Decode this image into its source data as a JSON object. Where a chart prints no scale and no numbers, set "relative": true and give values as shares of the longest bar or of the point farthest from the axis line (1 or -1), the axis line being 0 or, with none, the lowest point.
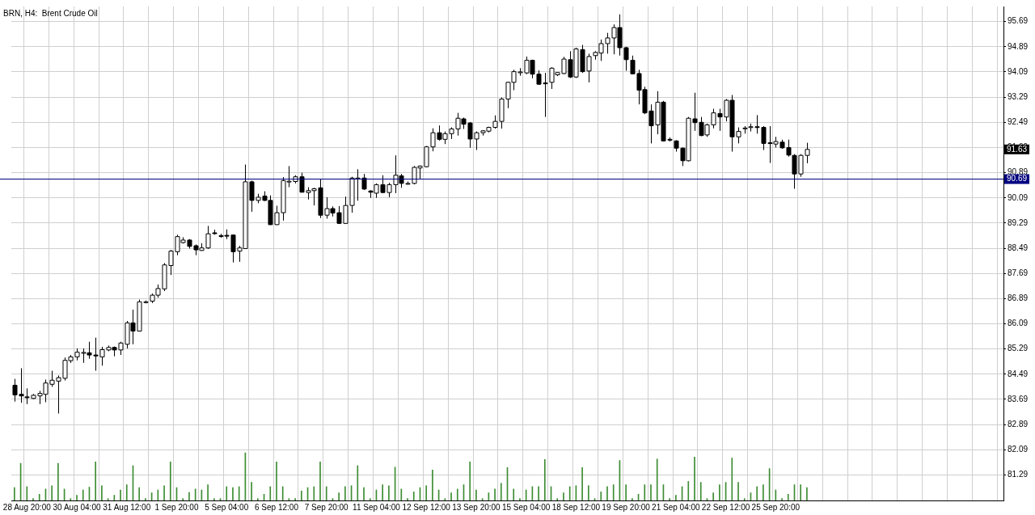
{
  "chart_data": [
    {
      "type": "candlestick",
      "title": "BRN, H4:  Brent Crude Oil",
      "categories": [
        null,
        null,
        "28 Aug 20:00",
        null,
        null,
        null,
        null,
        null,
        null,
        null,
        "30 Aug 04:00",
        null,
        null,
        null,
        null,
        null,
        null,
        null,
        "31 Aug 12:00",
        null,
        null,
        null,
        null,
        null,
        null,
        null,
        "1 Sep 20:00",
        null,
        null,
        null,
        null,
        null,
        null,
        null,
        "5 Sep 04:00",
        null,
        null,
        null,
        null,
        null,
        null,
        null,
        "6 Sep 12:00",
        null,
        null,
        null,
        null,
        null,
        null,
        null,
        "7 Sep 20:00",
        null,
        null,
        null,
        null,
        null,
        null,
        null,
        "11 Sep 04:00",
        null,
        null,
        null,
        null,
        null,
        null,
        null,
        "12 Sep 12:00",
        null,
        null,
        null,
        null,
        null,
        null,
        null,
        "13 Sep 20:00",
        null,
        null,
        null,
        null,
        null,
        null,
        null,
        "15 Sep 04:00",
        null,
        null,
        null,
        null,
        null,
        null,
        null,
        "18 Sep 12:00",
        null,
        null,
        null,
        null,
        null,
        null,
        null,
        "19 Sep 20:00",
        null,
        null,
        null,
        null,
        null,
        null,
        null,
        "21 Sep 04:00",
        null,
        null,
        null,
        null,
        null,
        null,
        null,
        "22 Sep 12:00",
        null,
        null,
        null,
        null,
        null,
        null,
        null,
        "25 Sep 20:00",
        null,
        null,
        null,
        null,
        null,
        null,
        null,
        null,
        null,
        null,
        null,
        null,
        null,
        null,
        null,
        null,
        null,
        null,
        null,
        null,
        null,
        null,
        null,
        null,
        null,
        null,
        null,
        null,
        null,
        null,
        null,
        null,
        null,
        null,
        null,
        null
      ],
      "ohlc": [
        [
          84.14,
          84.34,
          83.62,
          83.83
        ],
        [
          83.85,
          84.68,
          83.58,
          83.8
        ],
        [
          83.77,
          84.04,
          83.54,
          83.76
        ],
        [
          83.72,
          83.86,
          83.7,
          83.82
        ],
        [
          83.8,
          83.96,
          83.54,
          83.88
        ],
        [
          83.85,
          84.32,
          83.6,
          84.21
        ],
        [
          84.17,
          84.6,
          84.09,
          84.3
        ],
        [
          84.27,
          84.45,
          83.24,
          84.38
        ],
        [
          84.36,
          85.02,
          84.29,
          84.93
        ],
        [
          84.92,
          85.1,
          84.85,
          85.04
        ],
        [
          85.04,
          85.31,
          84.93,
          85.19
        ],
        [
          85.17,
          85.31,
          84.85,
          85.18
        ],
        [
          85.17,
          85.52,
          84.98,
          85.1
        ],
        [
          85.1,
          85.65,
          84.6,
          85.07
        ],
        [
          85.04,
          85.36,
          84.76,
          85.27
        ],
        [
          85.26,
          85.4,
          85.22,
          85.34
        ],
        [
          85.34,
          85.37,
          85.06,
          85.26
        ],
        [
          85.26,
          85.52,
          85.1,
          85.48
        ],
        [
          85.44,
          86.18,
          85.31,
          86.12
        ],
        [
          86.12,
          86.54,
          85.44,
          85.86
        ],
        [
          85.86,
          86.86,
          85.86,
          86.79
        ],
        [
          86.78,
          86.83,
          86.74,
          86.79
        ],
        [
          86.81,
          87.05,
          86.75,
          87.0
        ],
        [
          87.0,
          87.34,
          86.92,
          87.21
        ],
        [
          87.2,
          88.02,
          87.13,
          87.96
        ],
        [
          87.94,
          88.44,
          87.64,
          88.4
        ],
        [
          88.38,
          88.92,
          88.27,
          88.86
        ],
        [
          88.67,
          88.84,
          88.64,
          88.75
        ],
        [
          88.75,
          88.78,
          88.48,
          88.55
        ],
        [
          88.57,
          88.61,
          88.27,
          88.44
        ],
        [
          88.42,
          88.65,
          88.41,
          88.5
        ],
        [
          88.5,
          89.2,
          88.47,
          88.95
        ],
        [
          88.98,
          89.08,
          88.92,
          88.97
        ],
        [
          88.89,
          88.95,
          88.82,
          88.89
        ],
        [
          88.9,
          89.09,
          88.78,
          88.89
        ],
        [
          88.91,
          88.92,
          88.04,
          88.38
        ],
        [
          88.4,
          88.57,
          88.06,
          88.5
        ],
        [
          88.48,
          91.15,
          88.48,
          90.6
        ],
        [
          90.6,
          90.64,
          89.65,
          90.01
        ],
        [
          90.01,
          90.22,
          89.92,
          90.11
        ],
        [
          90.15,
          90.3,
          89.99,
          90.01
        ],
        [
          90.01,
          90.17,
          89.23,
          89.24
        ],
        [
          89.24,
          89.84,
          89.23,
          89.62
        ],
        [
          89.62,
          90.75,
          89.37,
          90.64
        ],
        [
          90.62,
          91.1,
          90.43,
          90.62
        ],
        [
          90.61,
          90.81,
          90.55,
          90.76
        ],
        [
          90.76,
          90.89,
          90.26,
          90.27
        ],
        [
          90.26,
          90.43,
          90.04,
          90.32
        ],
        [
          90.32,
          90.41,
          89.85,
          90.38
        ],
        [
          90.41,
          90.68,
          89.45,
          89.54
        ],
        [
          89.54,
          90.11,
          89.43,
          89.75
        ],
        [
          89.75,
          89.82,
          89.5,
          89.61
        ],
        [
          89.62,
          89.83,
          89.26,
          89.28
        ],
        [
          89.28,
          90.13,
          89.26,
          89.85
        ],
        [
          89.85,
          90.76,
          89.62,
          90.72
        ],
        [
          90.72,
          91.0,
          90.0,
          90.72
        ],
        [
          90.72,
          90.85,
          90.34,
          90.37
        ],
        [
          90.31,
          90.33,
          90.09,
          90.27
        ],
        [
          90.24,
          90.55,
          90.09,
          90.51
        ],
        [
          90.51,
          90.81,
          90.24,
          90.26
        ],
        [
          90.26,
          90.57,
          90.11,
          90.51
        ],
        [
          90.51,
          91.44,
          90.24,
          90.81
        ],
        [
          90.79,
          90.85,
          90.41,
          90.55
        ],
        [
          90.55,
          90.61,
          90.51,
          90.55
        ],
        [
          90.55,
          91.1,
          90.52,
          91.06
        ],
        [
          91.04,
          91.12,
          90.68,
          91.1
        ],
        [
          91.08,
          91.74,
          91.06,
          91.71
        ],
        [
          91.71,
          92.3,
          91.57,
          92.16
        ],
        [
          92.16,
          92.39,
          91.91,
          91.95
        ],
        [
          91.95,
          92.2,
          91.8,
          92.13
        ],
        [
          92.13,
          92.33,
          91.96,
          92.28
        ],
        [
          92.28,
          92.79,
          92.07,
          92.62
        ],
        [
          92.6,
          92.64,
          92.28,
          92.43
        ],
        [
          92.47,
          92.5,
          91.68,
          91.96
        ],
        [
          91.96,
          92.2,
          91.61,
          92.16
        ],
        [
          92.16,
          92.24,
          92.07,
          92.22
        ],
        [
          92.21,
          92.35,
          92.17,
          92.33
        ],
        [
          92.33,
          92.71,
          92.29,
          92.52
        ],
        [
          92.52,
          93.28,
          92.29,
          93.23
        ],
        [
          93.23,
          93.78,
          92.94,
          93.76
        ],
        [
          93.76,
          94.16,
          93.51,
          94.1
        ],
        [
          94.09,
          94.21,
          93.97,
          94.09
        ],
        [
          94.06,
          94.58,
          94.02,
          94.46
        ],
        [
          94.46,
          94.48,
          93.89,
          94.02
        ],
        [
          94.02,
          94.14,
          93.68,
          93.7
        ],
        [
          93.74,
          94.06,
          92.66,
          93.73
        ],
        [
          93.76,
          94.24,
          93.55,
          94.21
        ],
        [
          94.0,
          94.08,
          93.96,
          94.07
        ],
        [
          94.04,
          94.57,
          94.02,
          94.5
        ],
        [
          94.48,
          94.75,
          93.9,
          93.93
        ],
        [
          93.93,
          94.86,
          93.9,
          94.82
        ],
        [
          94.8,
          94.95,
          94.06,
          94.1
        ],
        [
          94.12,
          94.67,
          93.76,
          94.58
        ],
        [
          94.61,
          94.75,
          94.48,
          94.71
        ],
        [
          94.69,
          95.12,
          94.44,
          94.99
        ],
        [
          94.99,
          95.33,
          94.67,
          95.17
        ],
        [
          95.17,
          95.6,
          94.65,
          95.5
        ],
        [
          95.5,
          95.92,
          94.61,
          94.86
        ],
        [
          94.86,
          94.89,
          94.13,
          94.48
        ],
        [
          94.46,
          94.61,
          94.02,
          94.03
        ],
        [
          94.04,
          94.16,
          93.06,
          93.51
        ],
        [
          93.53,
          93.62,
          92.75,
          92.79
        ],
        [
          92.85,
          93.06,
          91.82,
          92.38
        ],
        [
          92.41,
          93.48,
          92.11,
          93.13
        ],
        [
          93.13,
          93.17,
          91.88,
          91.9
        ],
        [
          91.95,
          92.01,
          91.88,
          91.94
        ],
        [
          91.9,
          91.92,
          91.56,
          91.67
        ],
        [
          91.67,
          91.69,
          91.1,
          91.27
        ],
        [
          91.27,
          92.66,
          91.25,
          92.62
        ],
        [
          92.6,
          93.43,
          92.22,
          92.48
        ],
        [
          92.49,
          92.66,
          92.05,
          92.07
        ],
        [
          92.09,
          92.45,
          92.03,
          92.41
        ],
        [
          92.41,
          92.92,
          92.3,
          92.79
        ],
        [
          92.77,
          92.92,
          92.22,
          92.66
        ],
        [
          92.66,
          93.23,
          92.52,
          93.19
        ],
        [
          93.19,
          93.36,
          91.56,
          92.03
        ],
        [
          92.03,
          92.33,
          91.82,
          92.2
        ],
        [
          92.31,
          92.37,
          92.13,
          92.31
        ],
        [
          92.33,
          92.45,
          92.2,
          92.35
        ],
        [
          92.35,
          92.72,
          92.13,
          92.34
        ],
        [
          92.33,
          92.37,
          91.61,
          91.82
        ],
        [
          91.84,
          92.37,
          91.2,
          91.83
        ],
        [
          91.8,
          92.03,
          91.69,
          91.88
        ],
        [
          91.86,
          91.94,
          91.65,
          91.68
        ],
        [
          91.69,
          91.94,
          91.4,
          91.45
        ],
        [
          91.44,
          91.48,
          90.38,
          90.85
        ],
        [
          90.85,
          91.48,
          90.76,
          91.44
        ],
        [
          91.44,
          91.84,
          91.19,
          91.63
        ],
        null,
        null,
        null,
        null,
        null,
        null,
        null,
        null,
        null,
        null,
        null,
        null,
        null,
        null,
        null,
        null,
        null,
        null,
        null,
        null,
        null,
        null,
        null,
        null,
        null,
        null,
        null,
        null,
        null,
        null,
        null
      ],
      "ylim": [
        80.48,
        96.17
      ],
      "yticks": [
        81.29,
        82.09,
        82.89,
        83.69,
        84.49,
        85.29,
        86.09,
        86.89,
        87.69,
        88.49,
        89.29,
        90.09,
        90.89,
        91.69,
        92.49,
        93.29,
        94.09,
        94.89,
        95.69
      ],
      "ref_lines": [
        {
          "axis": "y",
          "value": 90.69,
          "label": "90.69",
          "color": "#000080"
        }
      ],
      "annotations": [
        {
          "text": "91.63",
          "y": 91.63
        }
      ],
      "grid": true
    },
    {
      "type": "bar",
      "relative": true,
      "tick_labels": false,
      "color": "#3c8c32",
      "categories": [
        null,
        null,
        null,
        null,
        null,
        null,
        null,
        null,
        null,
        null,
        null,
        null,
        null,
        null,
        null,
        null,
        null,
        null,
        null,
        null,
        null,
        null,
        null,
        null,
        null,
        null,
        null,
        null,
        null,
        null,
        null,
        null,
        null,
        null,
        null,
        null,
        null,
        null,
        null,
        null,
        null,
        null,
        null,
        null,
        null,
        null,
        null,
        null,
        null,
        null,
        null,
        null,
        null,
        null,
        null,
        null,
        null,
        null,
        null,
        null,
        null,
        null,
        null,
        null,
        null,
        null,
        null,
        null,
        null,
        null,
        null,
        null,
        null,
        null,
        null,
        null,
        null,
        null,
        null,
        null,
        null,
        null,
        null,
        null,
        null,
        null,
        null,
        null,
        null,
        null,
        null,
        null,
        null,
        null,
        null,
        null,
        null,
        null,
        null,
        null,
        null,
        null,
        null,
        null,
        null,
        null,
        null,
        null,
        null,
        null,
        null,
        null,
        null,
        null,
        null,
        null,
        null,
        null,
        null,
        null,
        null,
        null,
        null,
        null,
        null,
        null,
        null,
        null,
        null,
        null,
        null,
        null,
        null,
        null,
        null,
        null,
        null,
        null,
        null,
        null,
        null,
        null,
        null,
        null,
        null,
        null,
        null,
        null,
        null,
        null,
        null,
        null,
        null,
        null,
        null,
        null,
        null,
        null,
        null
      ],
      "values": [
        0.27,
        0.78,
        0.29,
        0.04,
        0.13,
        0.24,
        0.31,
        0.78,
        0.24,
        0.04,
        0.11,
        0.22,
        0.28,
        0.81,
        0.31,
        0.04,
        0.11,
        0.22,
        0.33,
        0.73,
        0.27,
        0.04,
        0.16,
        0.22,
        0.31,
        0.81,
        0.27,
        0.04,
        0.17,
        0.24,
        0.22,
        0.33,
        0.04,
        0.04,
        0.29,
        0.27,
        0.29,
        1,
        0.38,
        0.04,
        0.13,
        0.29,
        0.81,
        0.29,
        0.04,
        0.04,
        0.2,
        0.27,
        0.29,
        0.81,
        0.29,
        0.04,
        0.16,
        0.29,
        0.31,
        0.73,
        0.27,
        0.04,
        0.22,
        0.33,
        0.31,
        0.7,
        0.24,
        0.04,
        0.18,
        0.27,
        0.31,
        0.64,
        0.22,
        0.04,
        0.16,
        0.24,
        0.33,
        0.81,
        0.22,
        0.04,
        0.16,
        0.24,
        0.36,
        0.69,
        0.24,
        0.04,
        0.22,
        0.29,
        0.29,
        0.86,
        0.29,
        0.04,
        0.16,
        0.29,
        0.31,
        0.69,
        0.31,
        0.04,
        0.18,
        0.29,
        0.33,
        0.84,
        0.33,
        0.04,
        0.13,
        0.33,
        0.33,
        0.87,
        0.33,
        0.04,
        0.11,
        0.29,
        0.4,
        0.91,
        0.38,
        0.04,
        0.16,
        0.33,
        0.38,
        0.89,
        0.38,
        0.04,
        0.16,
        0.29,
        0.33,
        0.67,
        0.22,
        0.04,
        0.13,
        0.33,
        0.33,
        0.27,
        null,
        null,
        null,
        null,
        null,
        null,
        null,
        null,
        null,
        null,
        null,
        null,
        null,
        null,
        null,
        null,
        null,
        null,
        null,
        null,
        null,
        null,
        null,
        null,
        null,
        null,
        null,
        null,
        null,
        null,
        null
      ]
    }
  ]
}
